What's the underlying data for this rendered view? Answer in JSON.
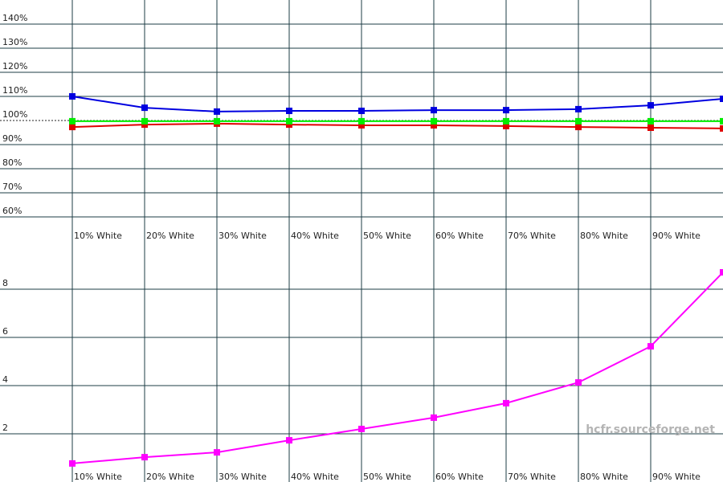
{
  "chart_data": [
    {
      "type": "line",
      "categories": [
        "10% White",
        "20% White",
        "30% White",
        "40% White",
        "50% White",
        "60% White",
        "70% White",
        "80% White",
        "90% White",
        null
      ],
      "series": [
        {
          "color": "#0000e0",
          "values": [
            110,
            105.3,
            103.7,
            104,
            104,
            104.3,
            104.3,
            104.7,
            106.3,
            109
          ]
        },
        {
          "color": "#e00000",
          "values": [
            97.3,
            98.3,
            98.7,
            98.3,
            98,
            98,
            97.7,
            97.3,
            97,
            96.7
          ]
        },
        {
          "color": "#00ee00",
          "values": [
            99.7,
            99.7,
            99.7,
            99.7,
            99.7,
            99.7,
            99.7,
            99.7,
            99.7,
            99.7
          ]
        }
      ],
      "ylim": [
        60,
        150
      ],
      "yticks": [
        {
          "value": 60,
          "label": "60%"
        },
        {
          "value": 70,
          "label": "70%"
        },
        {
          "value": 80,
          "label": "80%"
        },
        {
          "value": 90,
          "label": "90%"
        },
        {
          "value": 100,
          "label": "100%"
        },
        {
          "value": 110,
          "label": "110%"
        },
        {
          "value": 120,
          "label": "120%"
        },
        {
          "value": 130,
          "label": "130%"
        },
        {
          "value": 140,
          "label": "140%"
        }
      ],
      "reference_line": 100,
      "grid": true
    },
    {
      "type": "line",
      "categories": [
        "10% White",
        "20% White",
        "30% White",
        "40% White",
        "50% White",
        "60% White",
        "70% White",
        "80% White",
        "90% White",
        null
      ],
      "series": [
        {
          "color": "#ff00ff",
          "values": [
            0.77,
            1.03,
            1.23,
            1.73,
            2.2,
            2.67,
            3.27,
            4.13,
            5.63,
            8.7
          ]
        }
      ],
      "ylim": [
        0,
        10
      ],
      "yticks": [
        2,
        4,
        6,
        8
      ],
      "watermark": "hcfr.sourceforge.net",
      "grid": true
    }
  ]
}
